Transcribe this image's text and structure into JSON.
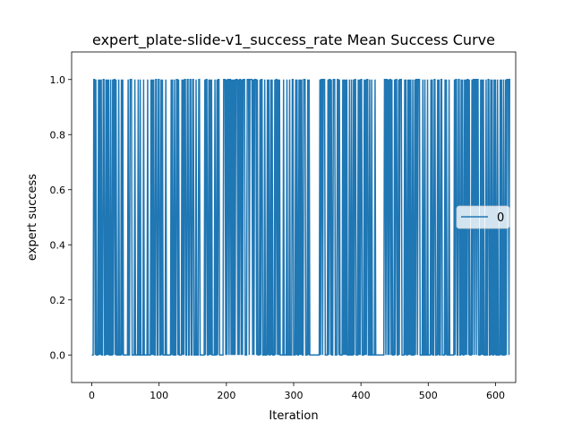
{
  "chart_data": {
    "type": "line",
    "title": "expert_plate-slide-v1_success_rate Mean Success Curve",
    "xlabel": "Iteration",
    "ylabel": "expert success",
    "xlim": [
      -30,
      630
    ],
    "ylim": [
      -0.1,
      1.1
    ],
    "xticks": [
      0,
      100,
      200,
      300,
      400,
      500,
      600
    ],
    "yticks": [
      0.0,
      0.2,
      0.4,
      0.6,
      0.8,
      1.0
    ],
    "xtick_labels": [
      "0",
      "100",
      "200",
      "300",
      "400",
      "500",
      "600"
    ],
    "ytick_labels": [
      "0.0",
      "0.2",
      "0.4",
      "0.6",
      "0.8",
      "1.0"
    ],
    "grid": false,
    "legend_position": "center-right",
    "series": [
      {
        "name": "0",
        "color": "#1f77b4",
        "x_start": 0,
        "x_step": 1,
        "values": [
          0,
          0,
          0,
          1,
          1,
          0,
          1,
          0,
          0,
          0,
          1,
          0,
          1,
          0,
          1,
          0,
          0,
          1,
          1,
          0,
          0,
          1,
          0,
          1,
          0,
          1,
          0,
          0,
          1,
          0,
          0,
          1,
          0,
          1,
          1,
          0,
          1,
          0,
          0,
          0,
          1,
          0,
          0,
          0,
          1,
          0,
          1,
          0,
          0,
          0,
          0,
          0,
          0,
          0,
          1,
          0,
          0,
          1,
          1,
          1,
          0,
          0,
          0,
          0,
          1,
          0,
          0,
          0,
          0,
          1,
          0,
          0,
          1,
          0,
          0,
          0,
          0,
          1,
          0,
          0,
          0,
          0,
          0,
          1,
          0,
          0,
          0,
          0,
          1,
          0,
          1,
          0,
          1,
          0,
          0,
          1,
          1,
          0,
          0,
          1,
          1,
          0,
          0,
          1,
          0,
          1,
          0,
          0,
          0,
          0,
          1,
          0,
          0,
          0,
          0,
          0,
          0,
          0,
          1,
          0,
          1,
          0,
          0,
          1,
          0,
          0,
          1,
          1,
          0,
          1,
          0,
          0,
          0,
          0,
          1,
          0,
          1,
          0,
          1,
          1,
          0,
          0,
          1,
          1,
          0,
          0,
          1,
          1,
          0,
          0,
          1,
          1,
          0,
          0,
          0,
          1,
          0,
          0,
          0,
          1,
          1,
          0,
          0,
          0,
          0,
          0,
          0,
          0,
          1,
          0,
          1,
          1,
          0,
          0,
          1,
          0,
          1,
          0,
          1,
          0,
          0,
          0,
          0,
          1,
          0,
          0,
          1,
          0,
          1,
          1,
          0,
          0,
          0,
          0,
          0,
          0,
          1,
          1,
          1,
          0,
          1,
          0,
          1,
          1,
          0,
          1,
          1,
          0,
          1,
          0,
          1,
          0,
          1,
          0,
          1,
          1,
          1,
          0,
          1,
          0,
          1,
          1,
          0,
          1,
          0,
          1,
          1,
          1,
          0,
          0,
          0,
          1,
          1,
          1,
          0,
          1,
          1,
          1,
          1,
          0,
          1,
          0,
          1,
          1,
          1,
          0,
          1,
          0,
          0,
          0,
          1,
          0,
          1,
          1,
          0,
          0,
          0,
          1,
          0,
          0,
          0,
          1,
          0,
          1,
          0,
          0,
          1,
          0,
          1,
          0,
          0,
          0,
          1,
          0,
          1,
          1,
          0,
          1,
          0,
          1,
          0,
          0,
          0,
          0,
          0,
          1,
          0,
          0,
          0,
          0,
          1,
          0,
          0,
          0,
          1,
          0,
          0,
          0,
          1,
          1,
          0,
          0,
          0,
          1,
          0,
          1,
          0,
          0,
          1,
          0,
          1,
          0,
          1,
          0,
          0,
          1,
          1,
          1,
          0,
          0,
          0,
          1,
          0,
          1,
          0,
          0,
          0,
          0,
          0,
          0,
          0,
          0,
          0,
          0,
          0,
          0,
          0,
          0,
          0,
          1,
          0,
          1,
          1,
          0,
          1,
          1,
          1,
          0,
          0,
          0,
          0,
          1,
          0,
          1,
          1,
          0,
          1,
          0,
          0,
          1,
          1,
          1,
          0,
          0,
          0,
          1,
          1,
          0,
          1,
          0,
          0,
          0,
          0,
          1,
          0,
          1,
          0,
          1,
          0,
          1,
          0,
          0,
          0,
          1,
          0,
          0,
          1,
          0,
          0,
          1,
          0,
          1,
          1,
          0,
          0,
          0,
          1,
          0,
          1,
          0,
          1,
          1,
          0,
          0,
          0,
          1,
          0,
          1,
          0,
          1,
          1,
          0,
          0,
          1,
          0,
          0,
          1,
          0,
          0,
          0,
          0,
          1,
          0,
          0,
          0,
          0,
          0,
          0,
          0,
          0,
          0,
          0,
          0,
          0,
          0,
          1,
          1,
          0,
          1,
          1,
          0,
          1,
          0,
          1,
          1,
          0,
          1,
          0,
          0,
          0,
          1,
          0,
          1,
          1,
          0,
          0,
          1,
          0,
          1,
          1,
          1,
          0,
          0,
          0,
          0,
          1,
          0,
          1,
          0,
          0,
          1,
          0,
          1,
          0,
          1,
          0,
          0,
          1,
          0,
          0,
          1,
          0,
          1,
          1,
          0,
          1,
          1,
          1,
          0,
          0,
          0,
          0,
          1,
          0,
          0,
          1,
          0,
          0,
          0,
          1,
          0,
          0,
          0,
          0,
          1,
          0,
          1,
          0,
          0,
          1,
          1,
          0,
          0,
          0,
          1,
          0,
          1,
          0,
          0,
          1,
          1,
          0,
          0,
          0,
          0,
          1,
          0,
          1,
          0,
          0,
          0,
          1,
          0,
          0,
          0,
          0,
          0,
          0,
          0,
          1,
          0,
          1,
          1,
          0,
          0,
          1,
          1,
          0,
          0,
          1,
          0,
          1,
          0,
          0,
          1,
          0,
          1,
          0,
          1,
          1,
          0,
          1,
          0,
          0,
          0,
          1,
          0,
          1,
          1,
          0,
          1,
          1,
          0,
          1,
          1,
          0,
          0,
          0,
          1,
          0,
          1,
          0,
          1,
          0,
          0,
          0,
          1,
          0,
          0,
          1,
          1,
          0,
          0,
          1,
          0,
          1,
          0,
          0,
          1,
          0,
          1,
          0,
          0,
          1,
          0,
          0,
          0,
          1,
          0,
          1,
          0,
          0,
          1,
          0,
          0,
          1,
          0,
          1,
          1,
          1,
          0,
          1,
          1
        ]
      }
    ]
  }
}
